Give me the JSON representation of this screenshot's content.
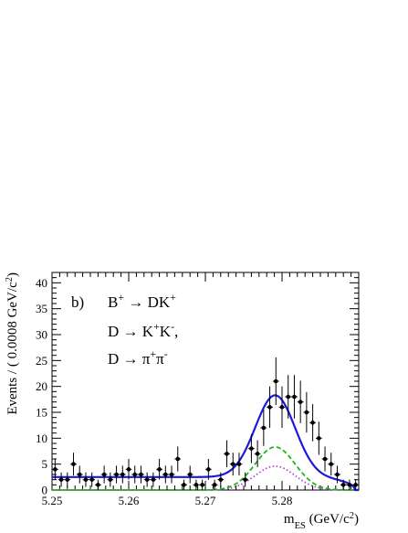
{
  "chart_data": {
    "type": "scatter",
    "panel_label": "b)",
    "annotations": [
      {
        "parts": [
          [
            "B",
            "",
            ""
          ],
          [
            "+",
            "sup",
            ""
          ],
          [
            " → DK",
            "",
            ""
          ],
          [
            "+",
            "sup",
            ""
          ]
        ]
      },
      {
        "parts": [
          [
            "D → K",
            "",
            ""
          ],
          [
            "+",
            "sup",
            ""
          ],
          [
            "K",
            "",
            ""
          ],
          [
            "-",
            "sup",
            ""
          ],
          [
            ",",
            "",
            ""
          ]
        ]
      },
      {
        "parts": [
          [
            "D → π",
            "",
            ""
          ],
          [
            "+",
            "sup",
            ""
          ],
          [
            "π",
            "",
            ""
          ],
          [
            "-",
            "sup",
            ""
          ]
        ]
      }
    ],
    "xlabel_parts": [
      [
        "m",
        "",
        ""
      ],
      [
        "ES",
        "sub",
        ""
      ],
      [
        " (GeV/c",
        "",
        ""
      ],
      [
        "2",
        "sup",
        ""
      ],
      [
        ")",
        "",
        ""
      ]
    ],
    "ylabel_parts": [
      [
        "Events / ( 0.0008 GeV/c",
        "",
        ""
      ],
      [
        "2",
        "sup",
        ""
      ],
      [
        ")",
        "",
        ""
      ]
    ],
    "xlim": [
      5.25,
      5.29
    ],
    "ylim": [
      0,
      42
    ],
    "xticks": [
      5.25,
      5.26,
      5.27,
      5.28
    ],
    "xtick_labels": [
      "5.25",
      "5.26",
      "5.27",
      "5.28"
    ],
    "yticks": [
      0,
      5,
      10,
      15,
      20,
      25,
      30,
      35,
      40
    ],
    "ytick_labels": [
      "0",
      "5",
      "10",
      "15",
      "20",
      "25",
      "30",
      "35",
      "40"
    ],
    "points": {
      "x": [
        5.2504,
        5.2512,
        5.252,
        5.2528,
        5.2536,
        5.2544,
        5.2552,
        5.256,
        5.2568,
        5.2576,
        5.2584,
        5.2592,
        5.26,
        5.2608,
        5.2616,
        5.2624,
        5.2632,
        5.264,
        5.2648,
        5.2656,
        5.2664,
        5.2672,
        5.268,
        5.2688,
        5.2696,
        5.2704,
        5.2712,
        5.272,
        5.2728,
        5.2736,
        5.2744,
        5.2752,
        5.276,
        5.2768,
        5.2776,
        5.2784,
        5.2792,
        5.28,
        5.2808,
        5.2816,
        5.2824,
        5.2832,
        5.284,
        5.2848,
        5.2856,
        5.2864,
        5.2872,
        5.288,
        5.2888,
        5.2896
      ],
      "y": [
        4,
        2,
        2,
        5,
        3,
        2,
        2,
        1,
        3,
        2,
        3,
        3,
        4,
        3,
        3,
        2,
        2,
        4,
        3,
        3,
        6,
        1,
        3,
        1,
        1,
        4,
        1,
        2,
        7,
        5,
        5,
        2,
        8,
        7,
        12,
        16,
        21,
        16,
        18,
        18,
        17,
        15,
        13,
        10,
        6,
        5,
        3,
        1,
        1,
        1
      ],
      "err": [
        2.0,
        1.4,
        1.4,
        2.2,
        1.7,
        1.4,
        1.4,
        1.0,
        1.7,
        1.4,
        1.7,
        1.7,
        2.0,
        1.7,
        1.7,
        1.4,
        1.4,
        2.0,
        1.7,
        1.7,
        2.4,
        1.0,
        1.7,
        1.0,
        1.0,
        2.0,
        1.0,
        1.4,
        2.6,
        2.2,
        2.2,
        1.4,
        2.8,
        2.6,
        3.5,
        4.0,
        4.6,
        4.0,
        4.2,
        4.2,
        4.1,
        3.9,
        3.6,
        3.2,
        2.4,
        2.2,
        1.7,
        1.0,
        1.0,
        1.0
      ]
    },
    "curves": {
      "total": {
        "color": "#1a1adc",
        "style": "solid",
        "bkg": 2.5,
        "amp": 15.8,
        "mean": 5.2791,
        "sigma": 0.0026,
        "endpoint": 5.2895
      },
      "signal": {
        "color": "#18b818",
        "style": "dashed",
        "bkg": 0,
        "amp": 8.3,
        "mean": 5.2791,
        "sigma": 0.0026,
        "endpoint": 5.2895
      },
      "component": {
        "color": "#c040d8",
        "style": "dotted",
        "bkg": 0,
        "amp": 4.6,
        "mean": 5.2791,
        "sigma": 0.0026,
        "endpoint": 5.2895
      }
    }
  }
}
